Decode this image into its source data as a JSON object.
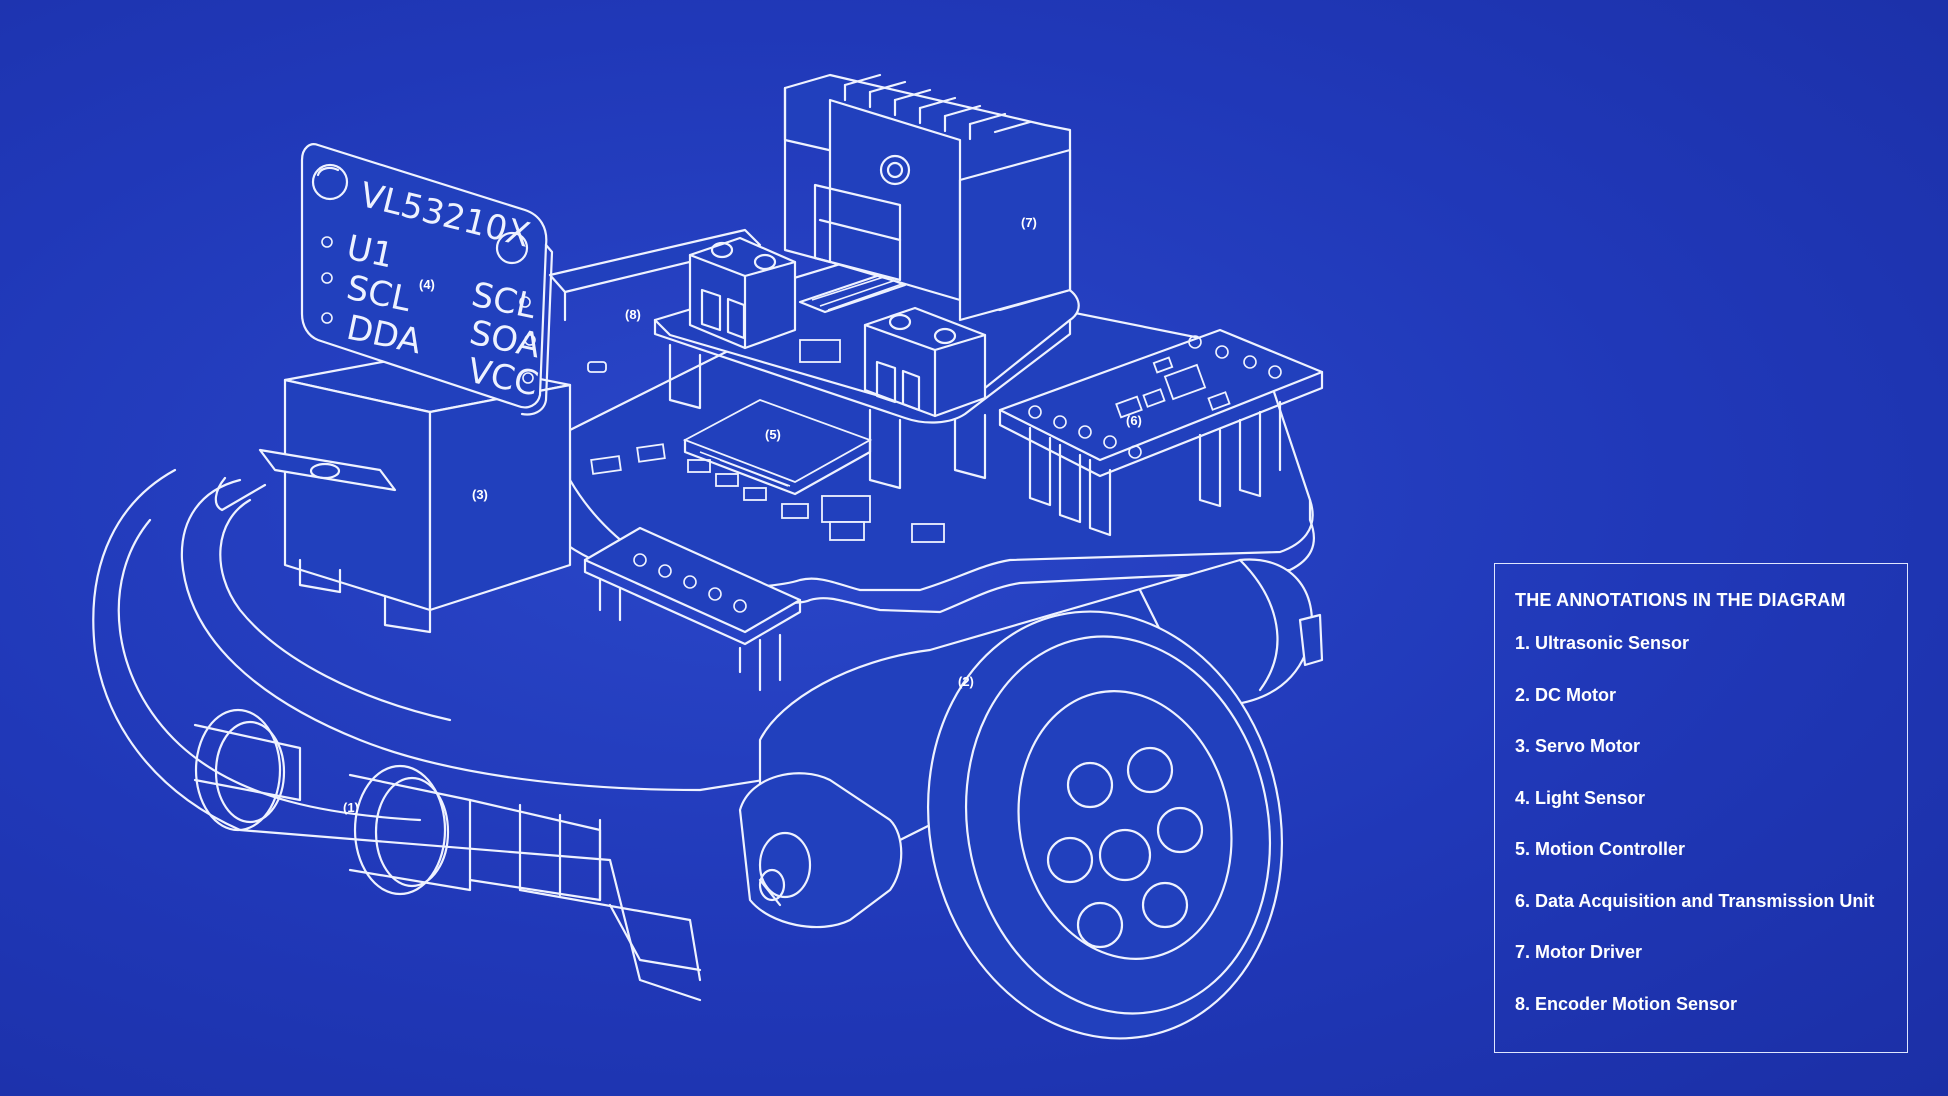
{
  "diagram": {
    "silkscreen": {
      "part_number": "VL53210X",
      "left_pins": [
        "U1",
        "SCL",
        "DDA"
      ],
      "right_pins": [
        "SCL",
        "SOA",
        "VCC"
      ]
    },
    "callouts": [
      {
        "id": 1,
        "label": "(1)"
      },
      {
        "id": 2,
        "label": "(2)"
      },
      {
        "id": 3,
        "label": "(3)"
      },
      {
        "id": 4,
        "label": "(4)"
      },
      {
        "id": 5,
        "label": "(5)"
      },
      {
        "id": 6,
        "label": "(6)"
      },
      {
        "id": 7,
        "label": "(7)"
      },
      {
        "id": 8,
        "label": "(8)"
      }
    ],
    "colors": {
      "background": "#2038b8",
      "line": "#eef2ff"
    }
  },
  "legend": {
    "title": "THE ANNOTATIONS IN THE DIAGRAM",
    "items": [
      "1. Ultrasonic Sensor",
      "2. DC Motor",
      "3. Servo Motor",
      "4. Light Sensor",
      "5. Motion Controller",
      "6. Data Acquisition and Transmission Unit",
      "7. Motor Driver",
      "8. Encoder Motion Sensor"
    ]
  }
}
